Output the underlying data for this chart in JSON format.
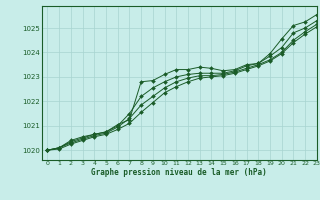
{
  "title": "Graphe pression niveau de la mer (hPa)",
  "bg_color": "#c8ede9",
  "grid_color": "#a8d4d0",
  "line_color": "#1a5c28",
  "xlim": [
    -0.5,
    23
  ],
  "ylim": [
    1019.6,
    1025.9
  ],
  "yticks": [
    1020,
    1021,
    1022,
    1023,
    1024,
    1025
  ],
  "xticks": [
    0,
    1,
    2,
    3,
    4,
    5,
    6,
    7,
    8,
    9,
    10,
    11,
    12,
    13,
    14,
    15,
    16,
    17,
    18,
    19,
    20,
    21,
    22,
    23
  ],
  "series": [
    [
      1020.0,
      1020.1,
      1020.4,
      1020.55,
      1020.65,
      1020.75,
      1021.05,
      1021.25,
      1022.8,
      1022.85,
      1023.1,
      1023.3,
      1023.3,
      1023.4,
      1023.35,
      1023.25,
      1023.3,
      1023.5,
      1023.55,
      1023.95,
      1024.55,
      1025.1,
      1025.25,
      1025.55
    ],
    [
      1020.0,
      1020.1,
      1020.35,
      1020.5,
      1020.65,
      1020.75,
      1021.0,
      1021.5,
      1022.2,
      1022.55,
      1022.8,
      1023.0,
      1023.1,
      1023.15,
      1023.15,
      1023.15,
      1023.25,
      1023.45,
      1023.55,
      1023.85,
      1024.2,
      1024.8,
      1025.0,
      1025.3
    ],
    [
      1020.0,
      1020.1,
      1020.3,
      1020.45,
      1020.6,
      1020.7,
      1020.95,
      1021.3,
      1021.85,
      1022.2,
      1022.55,
      1022.8,
      1022.95,
      1023.05,
      1023.05,
      1023.1,
      1023.2,
      1023.35,
      1023.5,
      1023.7,
      1024.0,
      1024.5,
      1024.85,
      1025.15
    ],
    [
      1020.0,
      1020.05,
      1020.25,
      1020.4,
      1020.55,
      1020.65,
      1020.85,
      1021.1,
      1021.55,
      1021.95,
      1022.35,
      1022.6,
      1022.8,
      1022.95,
      1023.0,
      1023.05,
      1023.15,
      1023.3,
      1023.45,
      1023.65,
      1023.95,
      1024.4,
      1024.75,
      1025.05
    ]
  ]
}
